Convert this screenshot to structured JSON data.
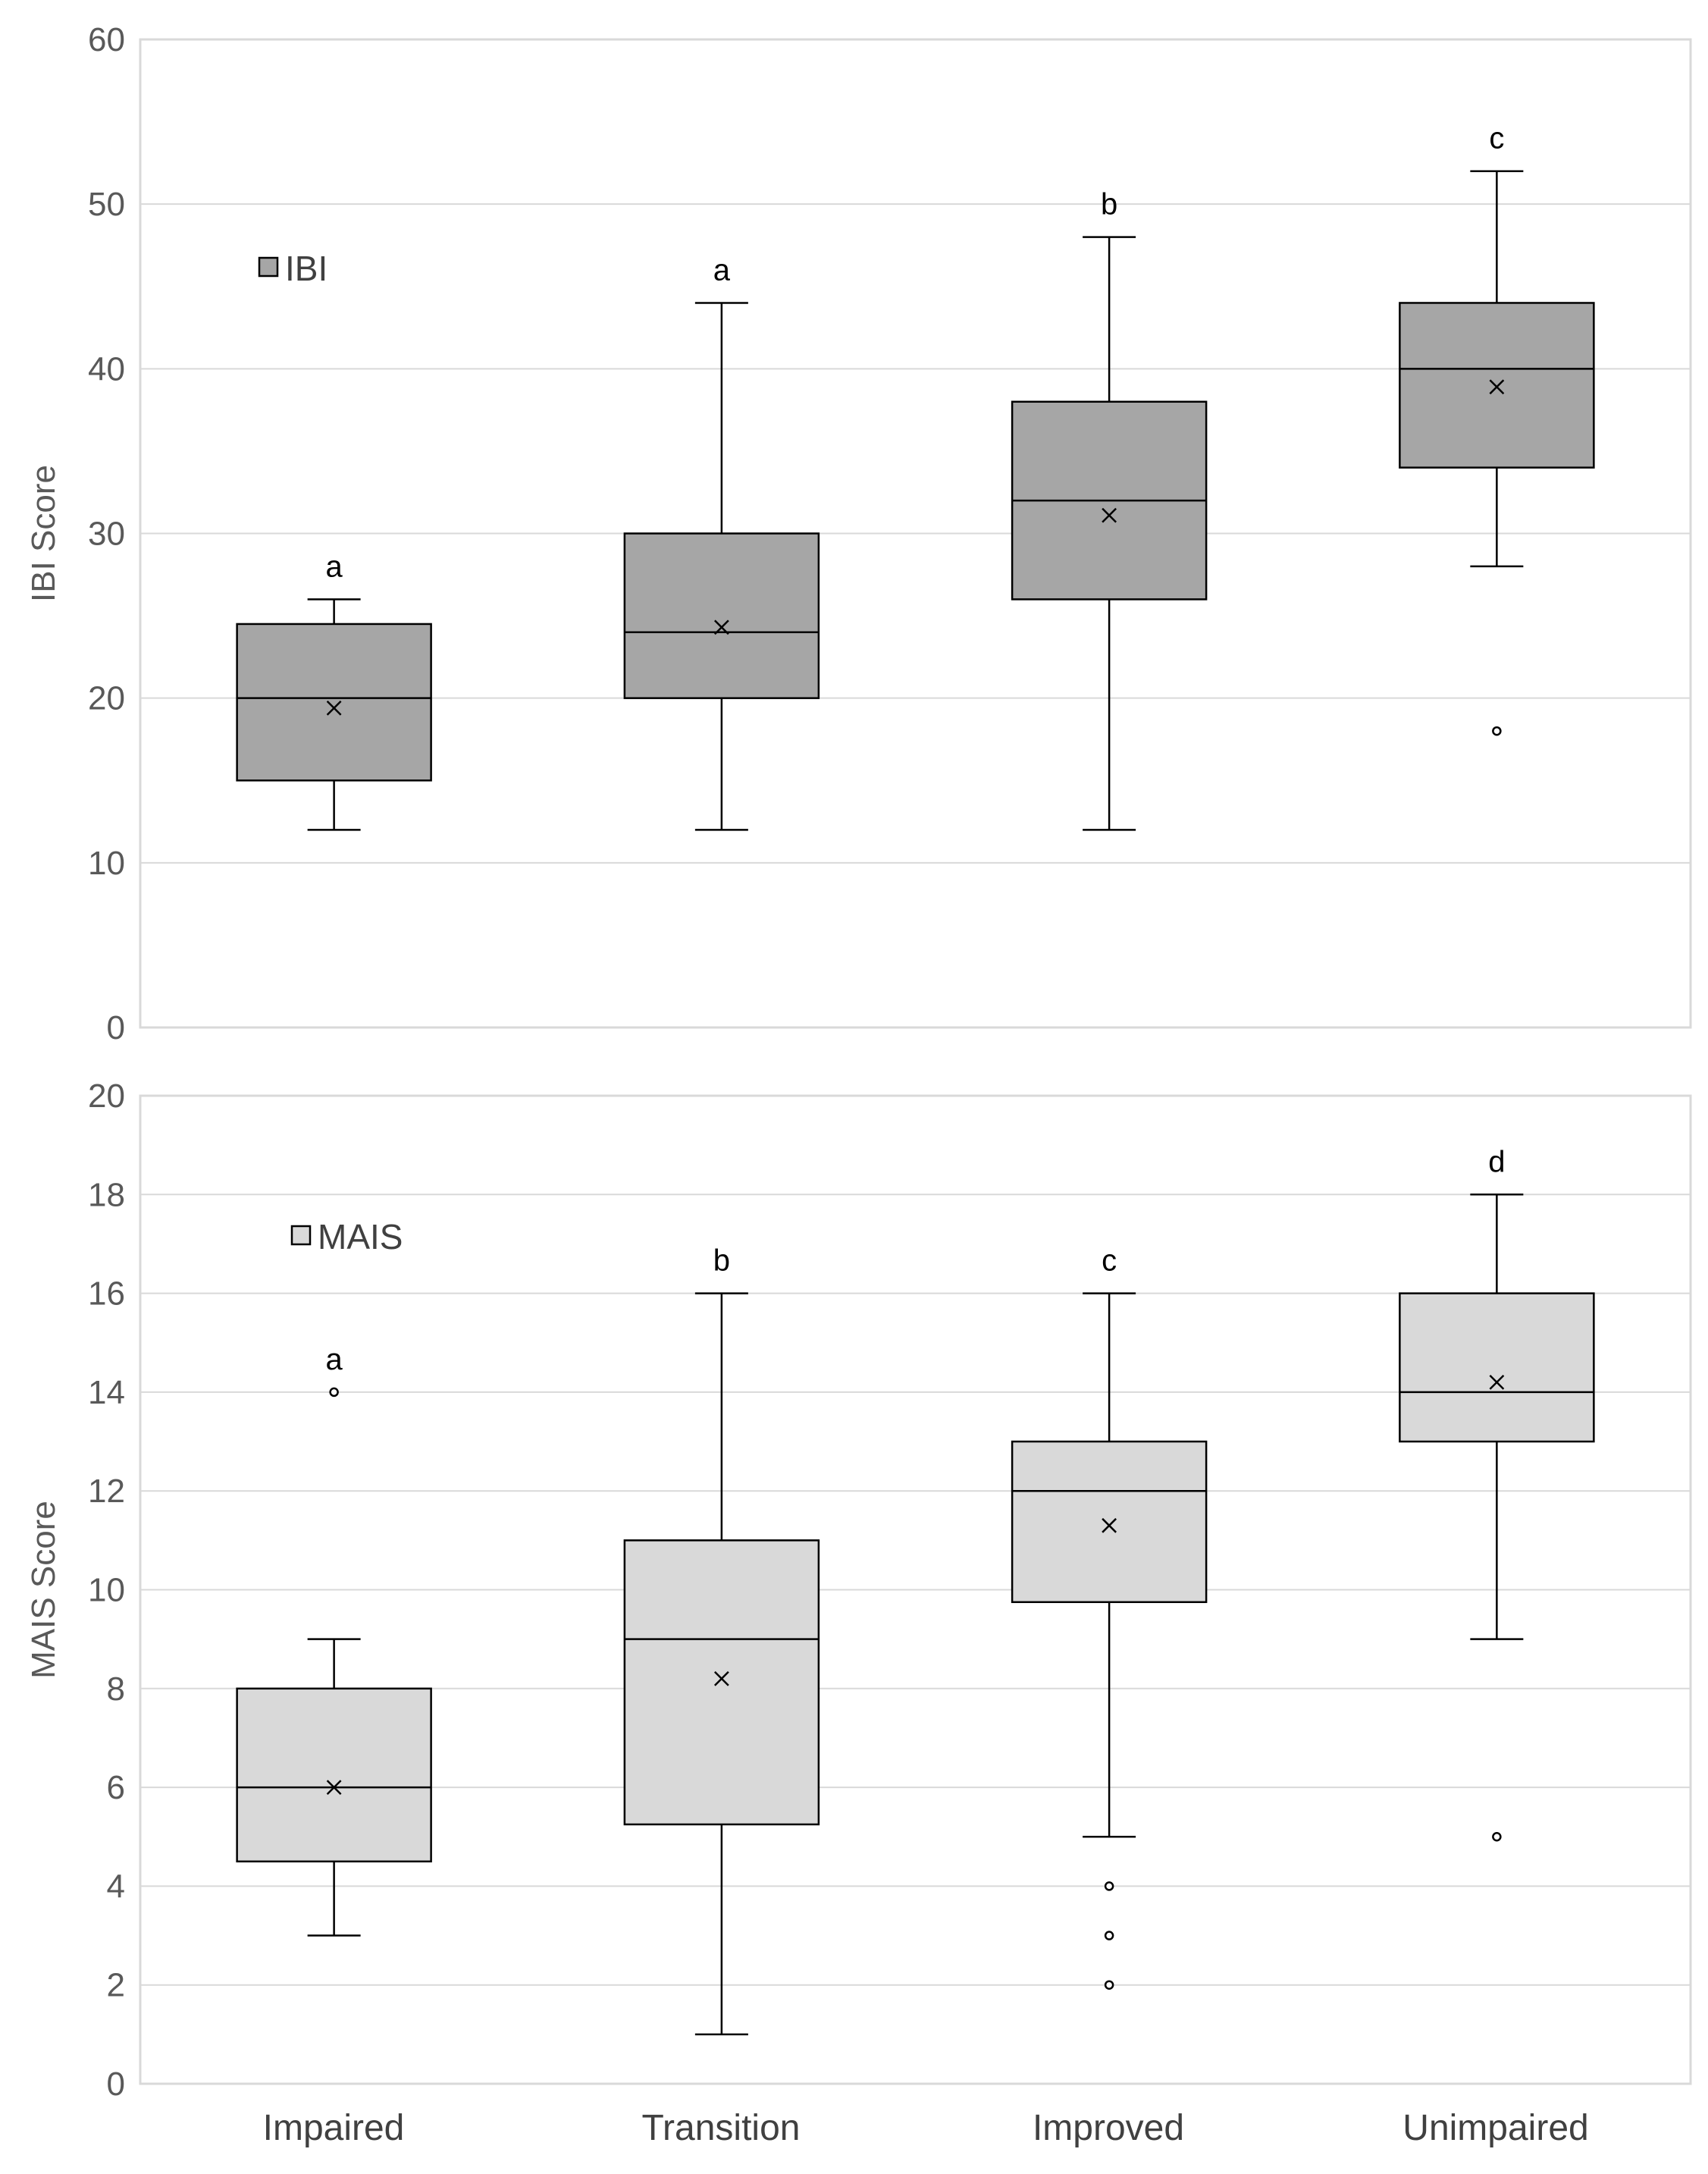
{
  "chart_data": [
    {
      "type": "box",
      "name": "ibi",
      "ylabel": "IBI Score",
      "ylim": [
        0,
        60
      ],
      "yticks": [
        0,
        10,
        20,
        30,
        40,
        50,
        60
      ],
      "legend": {
        "label": "IBI",
        "position": "top-left"
      },
      "fill_color": "#a6a6a6",
      "categories": [
        "Impaired",
        "Transition",
        "Improved",
        "Unimpaired"
      ],
      "boxes": [
        {
          "category": "Impaired",
          "min": 12,
          "q1": 15,
          "median": 20,
          "q3": 24.5,
          "max": 26,
          "mean": 19.4,
          "outliers": [],
          "letter": "a"
        },
        {
          "category": "Transition",
          "min": 12,
          "q1": 20,
          "median": 24,
          "q3": 30,
          "max": 44,
          "mean": 24.3,
          "outliers": [],
          "letter": "a"
        },
        {
          "category": "Improved",
          "min": 12,
          "q1": 26,
          "median": 32,
          "q3": 38,
          "max": 48,
          "mean": 31.1,
          "outliers": [],
          "letter": "b"
        },
        {
          "category": "Unimpaired",
          "min": 28,
          "q1": 34,
          "median": 40,
          "q3": 44,
          "max": 52,
          "mean": 38.9,
          "outliers": [
            18
          ],
          "letter": "c"
        }
      ]
    },
    {
      "type": "box",
      "name": "mais",
      "ylabel": "MAIS Score",
      "ylim": [
        0,
        20
      ],
      "yticks": [
        0,
        2,
        4,
        6,
        8,
        10,
        12,
        14,
        16,
        18,
        20
      ],
      "legend": {
        "label": "MAIS",
        "position": "top-left"
      },
      "fill_color": "#d9d9d9",
      "categories": [
        "Impaired",
        "Transition",
        "Improved",
        "Unimpaired"
      ],
      "boxes": [
        {
          "category": "Impaired",
          "min": 3,
          "q1": 4.5,
          "median": 6,
          "q3": 8,
          "max": 9,
          "mean": 6.0,
          "outliers": [
            14
          ],
          "letter": "a"
        },
        {
          "category": "Transition",
          "min": 1,
          "q1": 5.25,
          "median": 9,
          "q3": 11,
          "max": 16,
          "mean": 8.2,
          "outliers": [],
          "letter": "b"
        },
        {
          "category": "Improved",
          "min": 5,
          "q1": 9.75,
          "median": 12,
          "q3": 13,
          "max": 16,
          "mean": 11.3,
          "outliers": [
            4,
            3,
            2
          ],
          "letter": "c"
        },
        {
          "category": "Unimpaired",
          "min": 9,
          "q1": 13,
          "median": 14,
          "q3": 16,
          "max": 18,
          "mean": 14.2,
          "outliers": [
            5
          ],
          "letter": "d"
        }
      ]
    }
  ],
  "x_axis": {
    "categories": [
      "Impaired",
      "Transition",
      "Improved",
      "Unimpaired"
    ]
  }
}
